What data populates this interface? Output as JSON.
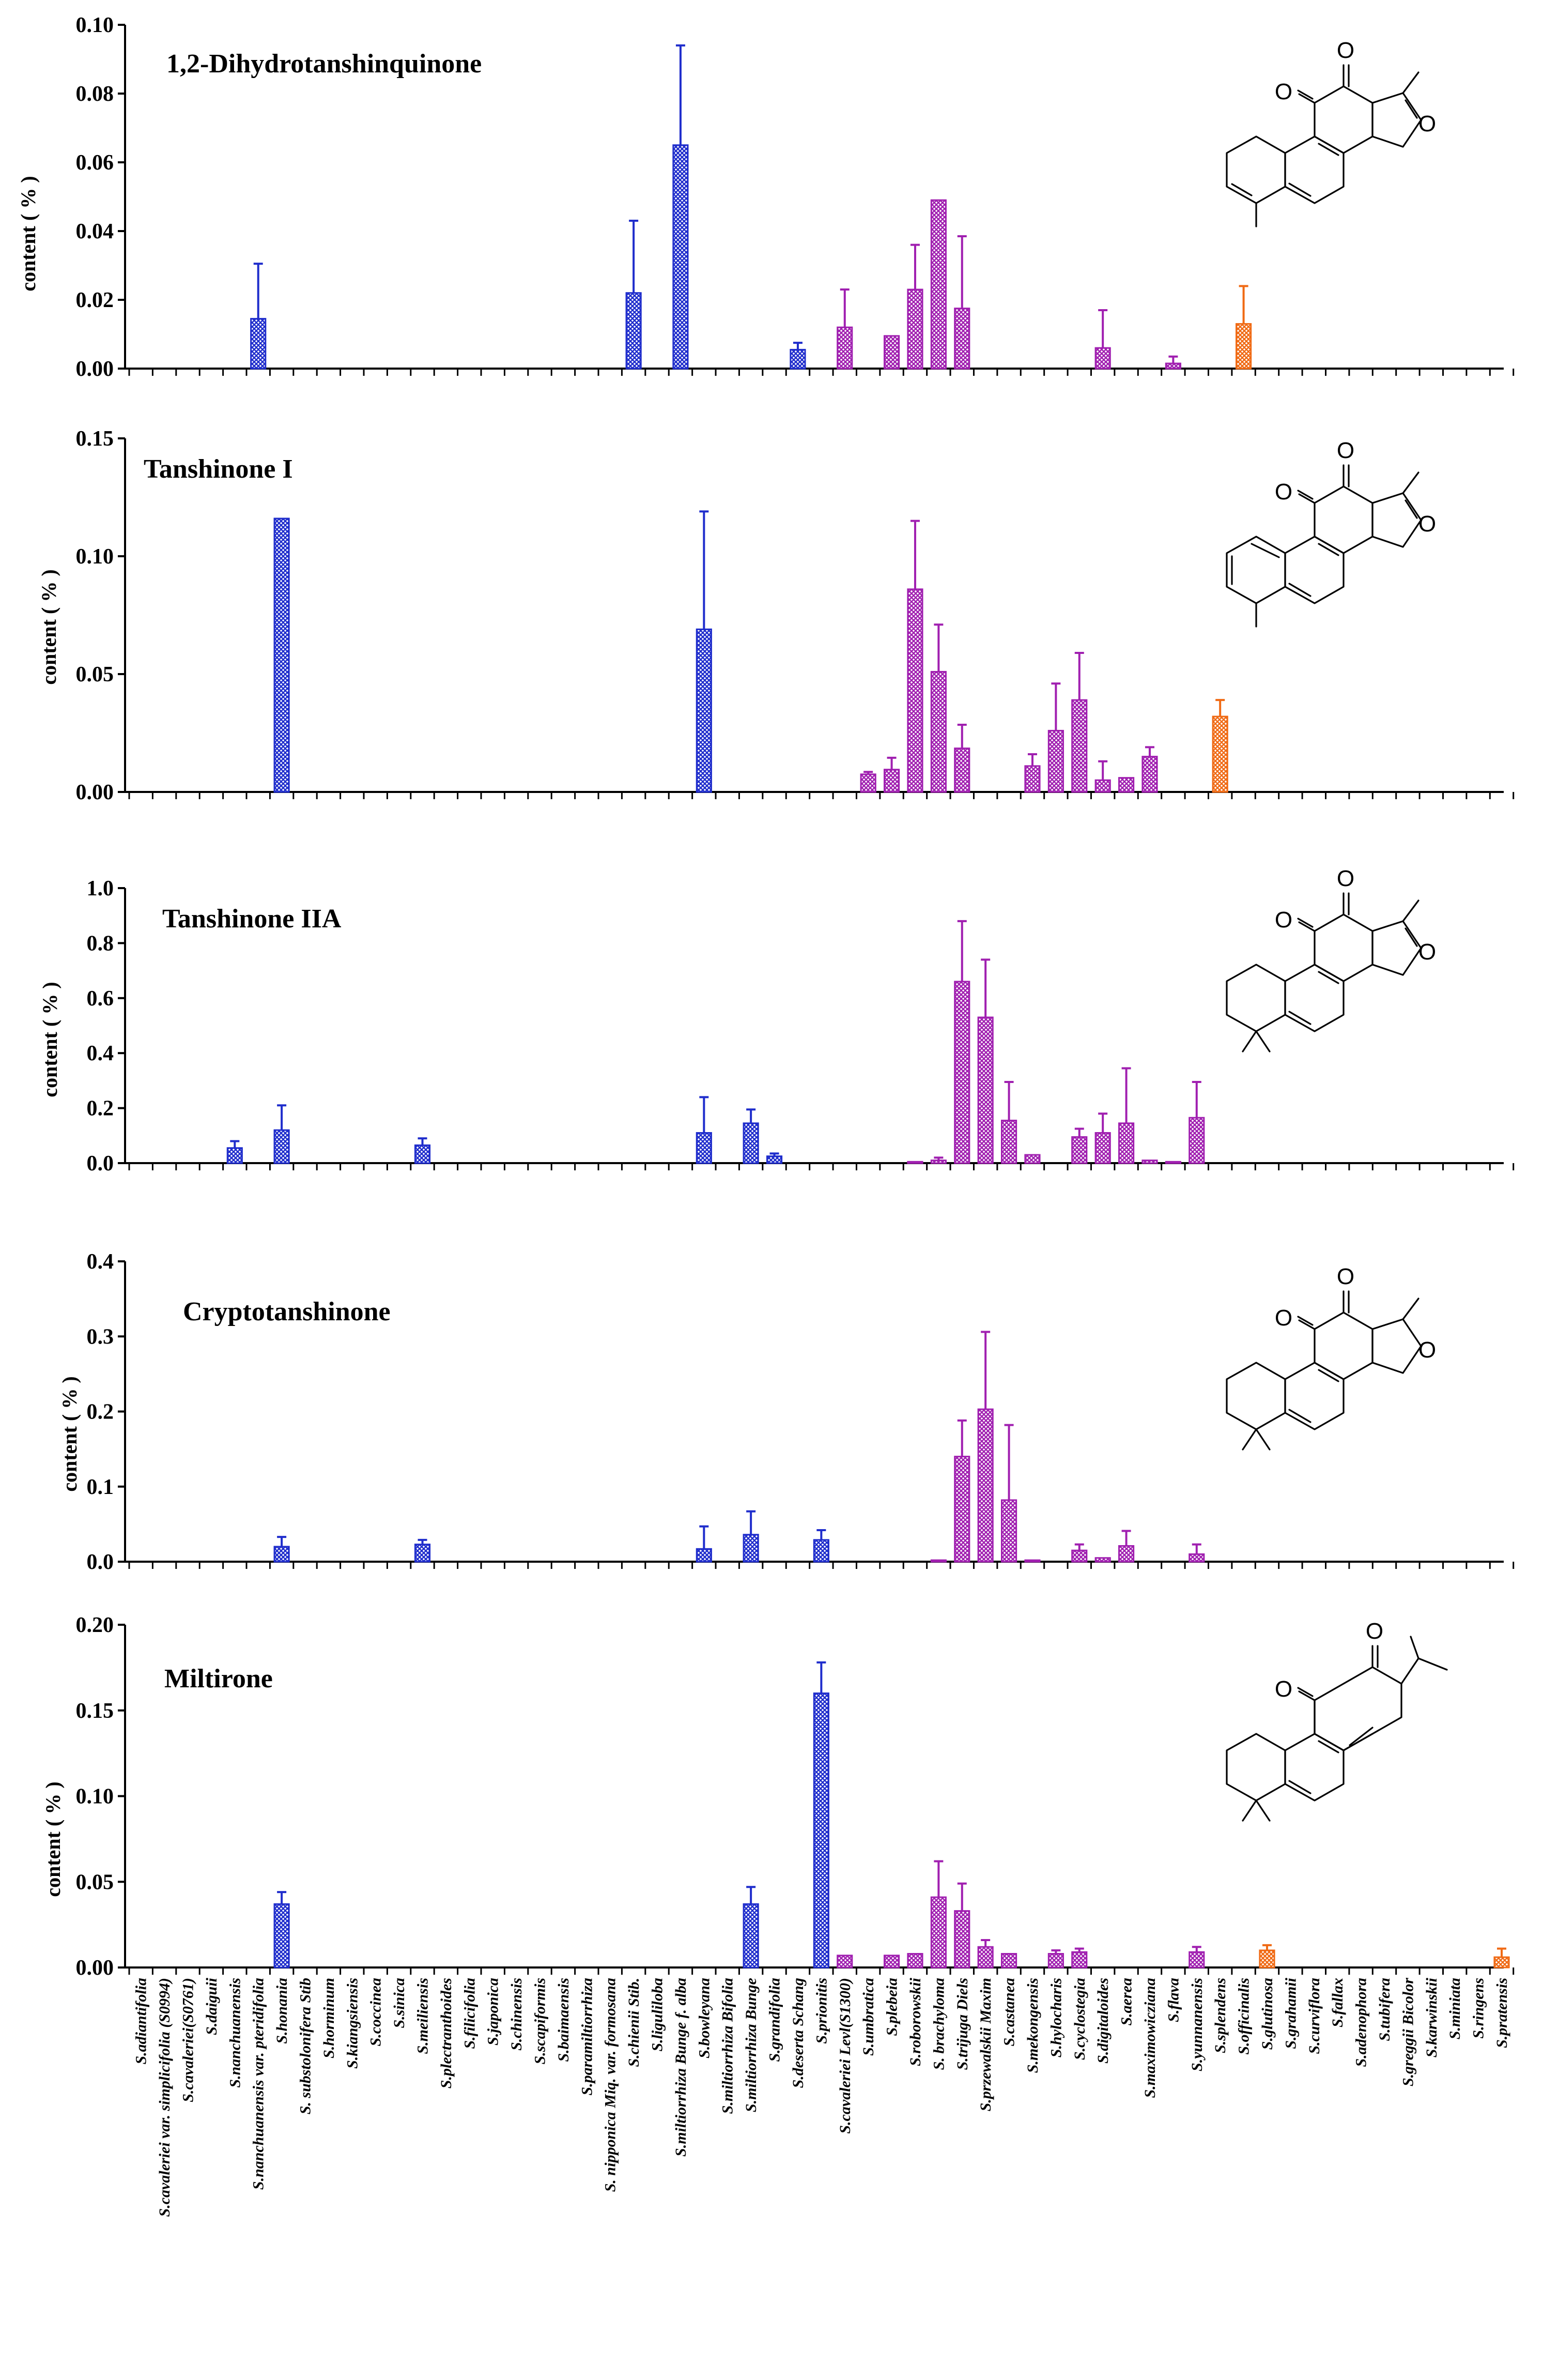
{
  "chart_data": [
    {
      "type": "bar",
      "title": "1,2-Dihydrotanshinquinone",
      "ylabel": "content ( % )",
      "ylim": [
        0,
        0.1
      ],
      "yticks": [
        "0.00",
        "0.02",
        "0.04",
        "0.06",
        "0.08",
        "0.10"
      ],
      "bars": [
        {
          "idx": 5,
          "value": 0.0145,
          "err": 0.016
        },
        {
          "idx": 21,
          "value": 0.022,
          "err": 0.021
        },
        {
          "idx": 23,
          "value": 0.065,
          "err": 0.029
        },
        {
          "idx": 28,
          "value": 0.0055,
          "err": 0.002
        },
        {
          "idx": 30,
          "value": 0.012,
          "err": 0.011
        },
        {
          "idx": 32,
          "value": 0.0095,
          "err": 0.0
        },
        {
          "idx": 33,
          "value": 0.023,
          "err": 0.013
        },
        {
          "idx": 34,
          "value": 0.049,
          "err": 0.0
        },
        {
          "idx": 35,
          "value": 0.0175,
          "err": 0.021
        },
        {
          "idx": 41,
          "value": 0.006,
          "err": 0.011
        },
        {
          "idx": 44,
          "value": 0.0015,
          "err": 0.002
        },
        {
          "idx": 47,
          "value": 0.013,
          "err": 0.011
        }
      ]
    },
    {
      "type": "bar",
      "title": "Tanshinone I",
      "ylabel": "content ( % )",
      "ylim": [
        0,
        0.15
      ],
      "yticks": [
        "0.00",
        "0.05",
        "0.10",
        "0.15"
      ],
      "bars": [
        {
          "idx": 6,
          "value": 0.116,
          "err": 0.0
        },
        {
          "idx": 24,
          "value": 0.069,
          "err": 0.05
        },
        {
          "idx": 31,
          "value": 0.0075,
          "err": 0.001
        },
        {
          "idx": 32,
          "value": 0.0095,
          "err": 0.005
        },
        {
          "idx": 33,
          "value": 0.086,
          "err": 0.029
        },
        {
          "idx": 34,
          "value": 0.051,
          "err": 0.02
        },
        {
          "idx": 35,
          "value": 0.0185,
          "err": 0.01
        },
        {
          "idx": 38,
          "value": 0.011,
          "err": 0.005
        },
        {
          "idx": 39,
          "value": 0.026,
          "err": 0.02
        },
        {
          "idx": 40,
          "value": 0.039,
          "err": 0.02
        },
        {
          "idx": 41,
          "value": 0.005,
          "err": 0.008
        },
        {
          "idx": 42,
          "value": 0.006,
          "err": 0.0
        },
        {
          "idx": 43,
          "value": 0.015,
          "err": 0.004
        },
        {
          "idx": 46,
          "value": 0.032,
          "err": 0.007
        }
      ]
    },
    {
      "type": "bar",
      "title": "Tanshinone IIA",
      "ylabel": "content ( % )",
      "ylim": [
        0,
        1.0
      ],
      "yticks": [
        "0.0",
        "0.2",
        "0.4",
        "0.6",
        "0.8",
        "1.0"
      ],
      "bars": [
        {
          "idx": 4,
          "value": 0.055,
          "err": 0.025
        },
        {
          "idx": 6,
          "value": 0.12,
          "err": 0.09
        },
        {
          "idx": 12,
          "value": 0.065,
          "err": 0.025
        },
        {
          "idx": 24,
          "value": 0.11,
          "err": 0.13
        },
        {
          "idx": 26,
          "value": 0.145,
          "err": 0.05
        },
        {
          "idx": 27,
          "value": 0.025,
          "err": 0.01
        },
        {
          "idx": 33,
          "value": 0.005,
          "err": 0.0
        },
        {
          "idx": 34,
          "value": 0.01,
          "err": 0.01
        },
        {
          "idx": 35,
          "value": 0.66,
          "err": 0.22
        },
        {
          "idx": 36,
          "value": 0.53,
          "err": 0.21
        },
        {
          "idx": 37,
          "value": 0.155,
          "err": 0.14
        },
        {
          "idx": 38,
          "value": 0.03,
          "err": 0.0
        },
        {
          "idx": 40,
          "value": 0.095,
          "err": 0.03
        },
        {
          "idx": 41,
          "value": 0.11,
          "err": 0.07
        },
        {
          "idx": 42,
          "value": 0.145,
          "err": 0.2
        },
        {
          "idx": 43,
          "value": 0.01,
          "err": 0.0
        },
        {
          "idx": 44,
          "value": 0.005,
          "err": 0.0
        },
        {
          "idx": 45,
          "value": 0.165,
          "err": 0.13
        }
      ]
    },
    {
      "type": "bar",
      "title": "Cryptotanshinone",
      "ylabel": "content ( % )",
      "ylim": [
        0,
        0.4
      ],
      "yticks": [
        "0.0",
        "0.1",
        "0.2",
        "0.3",
        "0.4"
      ],
      "bars": [
        {
          "idx": 6,
          "value": 0.02,
          "err": 0.013
        },
        {
          "idx": 12,
          "value": 0.023,
          "err": 0.006
        },
        {
          "idx": 24,
          "value": 0.017,
          "err": 0.03
        },
        {
          "idx": 26,
          "value": 0.036,
          "err": 0.031
        },
        {
          "idx": 29,
          "value": 0.029,
          "err": 0.013
        },
        {
          "idx": 34,
          "value": 0.002,
          "err": 0.0
        },
        {
          "idx": 35,
          "value": 0.14,
          "err": 0.048
        },
        {
          "idx": 36,
          "value": 0.203,
          "err": 0.103
        },
        {
          "idx": 37,
          "value": 0.082,
          "err": 0.1
        },
        {
          "idx": 38,
          "value": 0.002,
          "err": 0.0
        },
        {
          "idx": 40,
          "value": 0.015,
          "err": 0.008
        },
        {
          "idx": 41,
          "value": 0.005,
          "err": 0.0
        },
        {
          "idx": 42,
          "value": 0.021,
          "err": 0.02
        },
        {
          "idx": 45,
          "value": 0.01,
          "err": 0.013
        }
      ]
    },
    {
      "type": "bar",
      "title": "Miltirone",
      "ylabel": "content ( % )",
      "ylim": [
        0,
        0.2
      ],
      "yticks": [
        "0.00",
        "0.05",
        "0.10",
        "0.15",
        "0.20"
      ],
      "bars": [
        {
          "idx": 6,
          "value": 0.037,
          "err": 0.007
        },
        {
          "idx": 26,
          "value": 0.037,
          "err": 0.01
        },
        {
          "idx": 29,
          "value": 0.16,
          "err": 0.018
        },
        {
          "idx": 30,
          "value": 0.007,
          "err": 0.0
        },
        {
          "idx": 32,
          "value": 0.007,
          "err": 0.0
        },
        {
          "idx": 33,
          "value": 0.008,
          "err": 0.0
        },
        {
          "idx": 34,
          "value": 0.041,
          "err": 0.021
        },
        {
          "idx": 35,
          "value": 0.033,
          "err": 0.016
        },
        {
          "idx": 36,
          "value": 0.012,
          "err": 0.004
        },
        {
          "idx": 37,
          "value": 0.008,
          "err": 0.0
        },
        {
          "idx": 39,
          "value": 0.008,
          "err": 0.002
        },
        {
          "idx": 40,
          "value": 0.009,
          "err": 0.002
        },
        {
          "idx": 45,
          "value": 0.009,
          "err": 0.003
        },
        {
          "idx": 48,
          "value": 0.01,
          "err": 0.003
        },
        {
          "idx": 58,
          "value": 0.006,
          "err": 0.005
        }
      ]
    }
  ],
  "categories": [
    "S.adiantifolia",
    "S.cavaleriei var. simplicifolia (S0994)",
    "S.cavaleriei(S0761)",
    "S.daiguii",
    "S.nanchuanensis",
    "S.nanchuanensis var. pteridifolia",
    "S.honania",
    "S. substolonifera Stib",
    "S.horminum",
    "S.kiangsiensis",
    "S.coccinea",
    "S.sinica",
    "S.meiliensis",
    "S.plectranthoides",
    "S.filicifolia",
    "S.japonica",
    "S.chinensis",
    "S.scapiformis",
    "S.baimaensis",
    "S.paramiltiorrhiza",
    "S. nipponica Miq. var. formosana",
    "S.chienii Stib.",
    "S.liguliloba",
    "S.miltiorrhiza Bunge f. alba",
    "S.bowleyana",
    "S.miltiorrhiza Bifolia",
    "S.miltiorrhiza Bunge",
    "S.grandifolia",
    "S.deserta Schang",
    "S.prionitis",
    "S.cavaleriei Levl(S1300)",
    "S.umbratica",
    "S.plebeia",
    "S.roborowskii",
    "S. brachyloma",
    "S.trijuga Diels",
    "S.przewalskii Maxim",
    "S.castanea",
    "S.mekongensis",
    "S.hylocharis",
    "S.cyclostegia",
    "S.digitaloides",
    "S.aerea",
    "S.maximowicziana",
    "S.flava",
    "S.yunnanensis",
    "S.splendens",
    "S.officinalis",
    "S.glutinosa",
    "S.grahamii",
    "S.curviflora",
    "S.fallax",
    "S.adenophora",
    "S.tubifera",
    "S.greggii Bicolor",
    "S.karwinskii",
    "S.miniata",
    "S.ringens",
    "S.pratensis"
  ],
  "group_colors": {
    "blue": "#1f2dcc",
    "purple": "#a01fb0",
    "orange": "#f06a14"
  },
  "structures": {
    "oxygen_symbol": "O"
  }
}
